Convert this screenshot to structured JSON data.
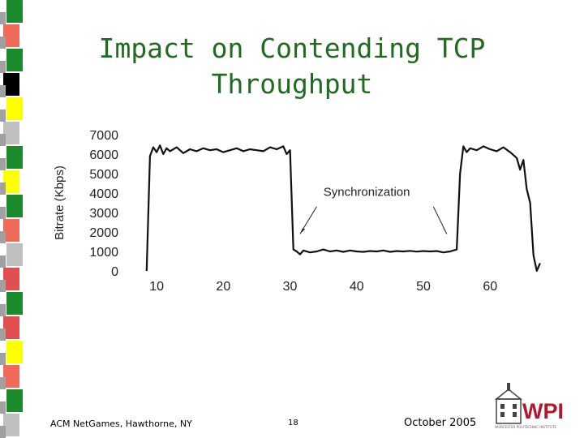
{
  "slide": {
    "title_line1": "Impact on Contending TCP",
    "title_line2": "Throughput"
  },
  "footer": {
    "left": "ACM NetGames, Hawthorne, NY",
    "center": "18",
    "right": "October 2005"
  },
  "logo": {
    "text": "WPI",
    "subtitle": "WORCESTER POLYTECHNIC INSTITUTE",
    "colors": {
      "red": "#b0182b",
      "gray": "#555555"
    }
  },
  "decor": {
    "strip_colors": [
      "#1b8a2a",
      "#f06a5a",
      "#1b8a2a",
      "#000000",
      "#ffff00",
      "#c0c0c0",
      "#1b8a2a",
      "#ffff00",
      "#1b8a2a",
      "#f06a5a",
      "#c0c0c0",
      "#e05050",
      "#1b8a2a",
      "#e05050",
      "#ffff00",
      "#f06a5a",
      "#1b8a2a",
      "#c0c0c0"
    ]
  },
  "chart_data": {
    "type": "line",
    "ylabel": "Bitrate (Kbps)",
    "xlabel": "",
    "xlim": [
      5,
      68
    ],
    "ylim": [
      0,
      7000
    ],
    "xticks": [
      10,
      20,
      30,
      40,
      50,
      60
    ],
    "yticks": [
      0,
      1000,
      2000,
      3000,
      4000,
      5000,
      6000,
      7000
    ],
    "grid": false,
    "annotation": "Synchronization",
    "series": [
      {
        "x": [
          8.5,
          9,
          9.5,
          10,
          10.5,
          11,
          11.5,
          12,
          13,
          14,
          15,
          16,
          17,
          18,
          19,
          20,
          21,
          22,
          23,
          24,
          25,
          26,
          27,
          28,
          29,
          29.5,
          30,
          30.5,
          31,
          31.5,
          32,
          33,
          34,
          35,
          36,
          37,
          38,
          39,
          40,
          41,
          42,
          43,
          44,
          45,
          46,
          47,
          48,
          49,
          50,
          51,
          52,
          53,
          54,
          55,
          55.5,
          56,
          56.5,
          57,
          58,
          59,
          60,
          61,
          62,
          63,
          64,
          64.5,
          65,
          65.5,
          66,
          66.5,
          67,
          67.5
        ],
        "y": [
          0,
          5900,
          6350,
          6100,
          6450,
          6000,
          6300,
          6150,
          6350,
          6050,
          6250,
          6150,
          6300,
          6200,
          6250,
          6100,
          6200,
          6300,
          6150,
          6250,
          6200,
          6150,
          6350,
          6250,
          6400,
          6000,
          6200,
          1100,
          1000,
          850,
          1050,
          950,
          1000,
          1100,
          1000,
          1050,
          980,
          1050,
          1000,
          980,
          1020,
          1000,
          1050,
          980,
          1020,
          1000,
          1030,
          990,
          1020,
          1000,
          1020,
          950,
          1000,
          1100,
          5000,
          6400,
          6100,
          6300,
          6200,
          6400,
          6250,
          6150,
          6350,
          6100,
          5800,
          5200,
          5700,
          4200,
          3500,
          800,
          0,
          400
        ]
      }
    ]
  }
}
